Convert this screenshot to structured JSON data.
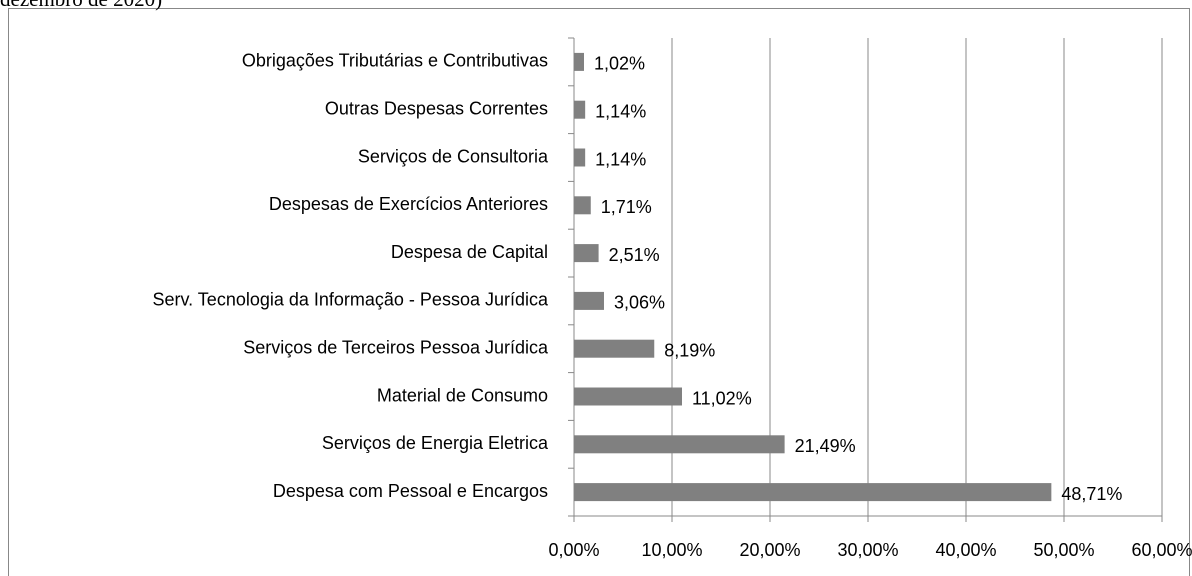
{
  "chart_data": {
    "type": "bar",
    "orientation": "horizontal",
    "title": "dezembro de 2020)",
    "categories": [
      "Despesa com Pessoal e Encargos",
      "Serviços de Energia Eletrica",
      "Material de Consumo",
      "Serviços de Terceiros Pessoa Jurídica",
      "Serv. Tecnologia da Informação - Pessoa Jurídica",
      "Despesa de Capital",
      "Despesas de Exercícios Anteriores",
      "Serviços de Consultoria",
      "Outras Despesas Correntes",
      "Obrigações Tributárias e Contributivas"
    ],
    "values": [
      48.71,
      21.49,
      11.02,
      8.19,
      3.06,
      2.51,
      1.71,
      1.14,
      1.14,
      1.02
    ],
    "value_labels": [
      "48,71%",
      "21,49%",
      "11,02%",
      "8,19%",
      "3,06%",
      "2,51%",
      "1,71%",
      "1,14%",
      "1,14%",
      "1,02%"
    ],
    "color": "#808080",
    "xlim": [
      0,
      60
    ],
    "xticks": [
      {
        "value": 0,
        "label": "0,00%"
      },
      {
        "value": 10,
        "label": "10,00%"
      },
      {
        "value": 20,
        "label": "20,00%"
      },
      {
        "value": 30,
        "label": "30,00%"
      },
      {
        "value": 40,
        "label": "40,00%"
      },
      {
        "value": 50,
        "label": "50,00%"
      },
      {
        "value": 60,
        "label": "60,00%"
      }
    ],
    "grid": true
  }
}
